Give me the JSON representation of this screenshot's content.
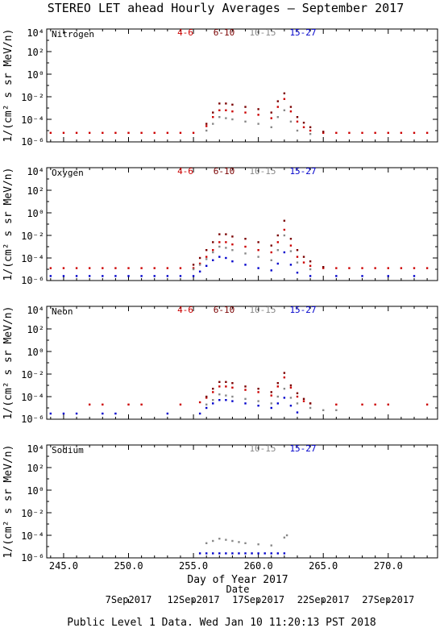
{
  "title": "STEREO LET ahead Hourly Averages – September 2017",
  "footer": "Public Level 1 Data.  Wed Jan 10 11:20:13 PST 2018",
  "xlabel": "Day of Year 2017",
  "date_label": "Date",
  "ylabel": "1/(cm² s sr MeV/n)",
  "x_ticks": [
    "245.0",
    "250.0",
    "255.0",
    "260.0",
    "265.0",
    "270.0"
  ],
  "date_ticks": [
    "7Sep2017",
    "12Sep2017",
    "17Sep2017",
    "22Sep2017",
    "27Sep2017"
  ],
  "colors": {
    "4-6": "#cc0000",
    "6-10": "#7a0000",
    "10-15": "#888888",
    "15-27": "#0000cc"
  },
  "chart_data": [
    {
      "type": "scatter",
      "panel": "Nitrogen",
      "xlim": [
        243.7,
        273.8
      ],
      "ylim_log10": [
        -6,
        4
      ],
      "y_ticks": [
        "10⁴",
        "10²",
        "10⁰",
        "10⁻²",
        "10⁻⁴",
        "10⁻⁶"
      ],
      "legend": [
        "4-6",
        "6-10",
        "10-15",
        "15-27"
      ],
      "series": [
        {
          "name": "4-6",
          "color": "#cc0000",
          "x": [
            244,
            245,
            246,
            247,
            248,
            249,
            250,
            251,
            252,
            253,
            254,
            255,
            256,
            256.5,
            257,
            257.5,
            258,
            259,
            260,
            261,
            261.5,
            262,
            262.5,
            263,
            263.5,
            264,
            265,
            266,
            267,
            268,
            269,
            270,
            271,
            272,
            273
          ],
          "log10": [
            -5.2,
            -5.2,
            -5.2,
            -5.2,
            -5.2,
            -5.2,
            -5.2,
            -5.2,
            -5.2,
            -5.2,
            -5.2,
            -5.2,
            -4.6,
            -3.8,
            -3.2,
            -3.2,
            -3.3,
            -3.4,
            -3.6,
            -3.9,
            -2.9,
            -2.2,
            -3.3,
            -4.2,
            -4.7,
            -5.0,
            -5.2,
            -5.2,
            -5.2,
            -5.2,
            -5.2,
            -5.2,
            -5.2,
            -5.2,
            -5.2
          ]
        },
        {
          "name": "6-10",
          "color": "#7a0000",
          "x": [
            256,
            256.5,
            257,
            257.5,
            258,
            259,
            260,
            261,
            261.5,
            262,
            262.5,
            263,
            263.5,
            264,
            265
          ],
          "log10": [
            -4.4,
            -3.4,
            -2.6,
            -2.6,
            -2.7,
            -2.9,
            -3.1,
            -3.4,
            -2.4,
            -1.7,
            -2.9,
            -3.8,
            -4.3,
            -4.7,
            -5.1
          ]
        },
        {
          "name": "10-15",
          "color": "#888888",
          "x": [
            256,
            256.5,
            257,
            257.5,
            258,
            259,
            260,
            261,
            261.5,
            262,
            262.5,
            263,
            264
          ],
          "log10": [
            -5.0,
            -4.4,
            -3.8,
            -3.9,
            -4.0,
            -4.2,
            -4.4,
            -4.7,
            -3.8,
            -3.2,
            -4.2,
            -5.0,
            -5.3
          ]
        },
        {
          "name": "15-27",
          "color": "#0000cc",
          "x": [],
          "log10": []
        }
      ]
    },
    {
      "type": "scatter",
      "panel": "Oxygen",
      "xlim": [
        243.7,
        273.8
      ],
      "ylim_log10": [
        -6,
        4
      ],
      "y_ticks": [
        "10⁴",
        "10²",
        "10⁰",
        "10⁻²",
        "10⁻⁴",
        "10⁻⁶"
      ],
      "legend": [
        "4-6",
        "6-10",
        "10-15",
        "15-27"
      ],
      "series": [
        {
          "name": "4-6",
          "color": "#cc0000",
          "x": [
            244,
            245,
            246,
            247,
            248,
            249,
            250,
            251,
            252,
            253,
            254,
            255,
            255.5,
            256,
            256.5,
            257,
            257.5,
            258,
            259,
            260,
            261,
            261.5,
            262,
            262.5,
            263,
            263.5,
            264,
            265,
            266,
            267,
            268,
            269,
            270,
            271,
            272,
            273
          ],
          "log10": [
            -4.9,
            -4.9,
            -4.9,
            -4.9,
            -4.9,
            -4.9,
            -4.9,
            -4.9,
            -4.9,
            -4.9,
            -4.9,
            -4.9,
            -4.5,
            -3.9,
            -3.3,
            -2.6,
            -2.6,
            -2.8,
            -3.0,
            -3.3,
            -3.5,
            -2.6,
            -1.5,
            -2.9,
            -3.9,
            -4.4,
            -4.7,
            -4.9,
            -4.9,
            -4.9,
            -4.9,
            -4.9,
            -4.9,
            -4.9,
            -4.9,
            -4.9
          ]
        },
        {
          "name": "6-10",
          "color": "#7a0000",
          "x": [
            255,
            255.5,
            256,
            256.5,
            257,
            257.5,
            258,
            259,
            260,
            261,
            261.5,
            262,
            262.5,
            263,
            263.5,
            264,
            265
          ],
          "log10": [
            -4.6,
            -4.0,
            -3.3,
            -2.6,
            -1.9,
            -1.9,
            -2.1,
            -2.3,
            -2.6,
            -2.9,
            -2.0,
            -0.7,
            -2.3,
            -3.3,
            -3.9,
            -4.3,
            -4.8
          ]
        },
        {
          "name": "10-15",
          "color": "#888888",
          "x": [
            255,
            255.5,
            256,
            256.5,
            257,
            257.5,
            258,
            259,
            260,
            261,
            261.5,
            262,
            262.5,
            263,
            264
          ],
          "log10": [
            -5.0,
            -4.6,
            -4.1,
            -3.5,
            -3.0,
            -3.1,
            -3.3,
            -3.6,
            -3.9,
            -4.2,
            -3.3,
            -2.0,
            -3.4,
            -4.4,
            -5.0
          ]
        },
        {
          "name": "15-27",
          "color": "#0000cc",
          "x": [
            244,
            245,
            246,
            247,
            248,
            249,
            250,
            251,
            252,
            253,
            254,
            255,
            255.5,
            256,
            256.5,
            257,
            257.5,
            258,
            259,
            260,
            261,
            261.5,
            262,
            262.5,
            263,
            264,
            266,
            268,
            270,
            272
          ],
          "log10": [
            -5.6,
            -5.6,
            -5.6,
            -5.6,
            -5.6,
            -5.6,
            -5.6,
            -5.6,
            -5.6,
            -5.6,
            -5.6,
            -5.6,
            -5.2,
            -4.7,
            -4.2,
            -3.9,
            -4.0,
            -4.3,
            -4.6,
            -4.9,
            -5.1,
            -4.5,
            -3.5,
            -4.6,
            -5.3,
            -5.6,
            -5.6,
            -5.6,
            -5.6,
            -5.6
          ]
        }
      ]
    },
    {
      "type": "scatter",
      "panel": "Neon",
      "xlim": [
        243.7,
        273.8
      ],
      "ylim_log10": [
        -6,
        4
      ],
      "y_ticks": [
        "10⁴",
        "10²",
        "10⁰",
        "10⁻²",
        "10⁻⁴",
        "10⁻⁶"
      ],
      "legend": [
        "4-6",
        "6-10",
        "10-15",
        "15-27"
      ],
      "series": [
        {
          "name": "4-6",
          "color": "#cc0000",
          "x": [
            247,
            248,
            250,
            251,
            254,
            255.5,
            256,
            256.5,
            257,
            257.5,
            258,
            259,
            260,
            261,
            261.5,
            262,
            262.5,
            263,
            263.5,
            264,
            266,
            268,
            269,
            270,
            273
          ],
          "log10": [
            -4.7,
            -4.7,
            -4.7,
            -4.7,
            -4.7,
            -4.5,
            -4.1,
            -3.6,
            -3.1,
            -3.1,
            -3.2,
            -3.4,
            -3.6,
            -3.9,
            -3.1,
            -2.3,
            -3.2,
            -4.0,
            -4.4,
            -4.6,
            -4.7,
            -4.7,
            -4.7,
            -4.7,
            -4.7
          ]
        },
        {
          "name": "6-10",
          "color": "#7a0000",
          "x": [
            256,
            256.5,
            257,
            257.5,
            258,
            259,
            260,
            261,
            261.5,
            262,
            262.5,
            263,
            263.5,
            264
          ],
          "log10": [
            -4.0,
            -3.3,
            -2.7,
            -2.7,
            -2.8,
            -3.1,
            -3.3,
            -3.6,
            -2.8,
            -1.9,
            -3.0,
            -3.7,
            -4.2,
            -4.6
          ]
        },
        {
          "name": "10-15",
          "color": "#888888",
          "x": [
            256,
            256.5,
            257,
            257.5,
            258,
            259,
            260,
            261,
            261.5,
            262,
            262.5,
            263,
            264,
            265,
            266
          ],
          "log10": [
            -4.7,
            -4.3,
            -3.8,
            -3.9,
            -4.0,
            -4.2,
            -4.4,
            -4.6,
            -4.0,
            -3.3,
            -4.1,
            -4.6,
            -5.0,
            -5.2,
            -5.2
          ]
        },
        {
          "name": "15-27",
          "color": "#0000cc",
          "x": [
            244,
            245,
            246,
            248,
            249,
            253,
            255.5,
            256,
            256.5,
            257,
            257.5,
            258,
            259,
            260,
            261,
            261.5,
            262,
            262.5,
            263
          ],
          "log10": [
            -5.5,
            -5.5,
            -5.5,
            -5.5,
            -5.5,
            -5.5,
            -5.5,
            -5.0,
            -4.6,
            -4.3,
            -4.3,
            -4.4,
            -4.6,
            -4.8,
            -5.0,
            -4.6,
            -4.1,
            -4.8,
            -5.4
          ]
        }
      ]
    },
    {
      "type": "scatter",
      "panel": "Sodium",
      "xlim": [
        243.7,
        273.8
      ],
      "ylim_log10": [
        -6,
        4
      ],
      "y_ticks": [
        "10⁴",
        "10²",
        "10⁰",
        "10⁻²",
        "10⁻⁴",
        "10⁻⁶"
      ],
      "legend": [
        "10-15",
        "15-27"
      ],
      "series": [
        {
          "name": "10-15",
          "color": "#888888",
          "x": [
            256,
            256.5,
            257,
            257.5,
            258,
            258.5,
            259,
            260,
            261,
            262,
            262.2
          ],
          "log10": [
            -4.7,
            -4.5,
            -4.3,
            -4.4,
            -4.5,
            -4.6,
            -4.7,
            -4.8,
            -4.9,
            -4.2,
            -4.0
          ]
        },
        {
          "name": "15-27",
          "color": "#0000cc",
          "x": [
            255.5,
            256,
            256.5,
            257,
            257.5,
            258,
            258.5,
            259,
            259.5,
            260,
            260.5,
            261,
            261.5,
            262
          ],
          "log10": [
            -5.6,
            -5.6,
            -5.6,
            -5.6,
            -5.6,
            -5.6,
            -5.6,
            -5.6,
            -5.6,
            -5.6,
            -5.6,
            -5.6,
            -5.6,
            -5.6
          ]
        }
      ]
    }
  ]
}
